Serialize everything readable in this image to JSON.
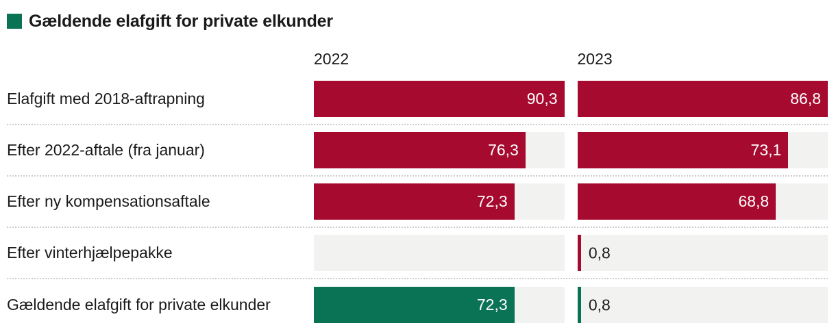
{
  "title": "Gældende elafgift for private elkunder",
  "columns": [
    "2022",
    "2023"
  ],
  "column_max": [
    90.3,
    86.8
  ],
  "colors": {
    "red": "#a60a2e",
    "green": "#0a7355",
    "track": "#f2f2f1",
    "separator": "#cbcbcb",
    "text_dark": "#1a1a1a",
    "text_light": "#ffffff"
  },
  "rows": [
    {
      "label": "Elafgift med 2018-aftrapning",
      "bar_color": "red",
      "cells": [
        {
          "value": 90.3,
          "label": "90,3"
        },
        {
          "value": 86.8,
          "label": "86,8"
        }
      ]
    },
    {
      "label": "Efter 2022-aftale (fra januar)",
      "bar_color": "red",
      "cells": [
        {
          "value": 76.3,
          "label": "76,3"
        },
        {
          "value": 73.1,
          "label": "73,1"
        }
      ]
    },
    {
      "label": "Efter ny kompensationsaftale",
      "bar_color": "red",
      "cells": [
        {
          "value": 72.3,
          "label": "72,3"
        },
        {
          "value": 68.8,
          "label": "68,8"
        }
      ]
    },
    {
      "label": "Efter vinterhjælpepakke",
      "bar_color": "red",
      "cells": [
        {
          "value": null,
          "label": null
        },
        {
          "value": 0.8,
          "label": "0,8"
        }
      ]
    },
    {
      "label": "Gældende elafgift for private elkunder",
      "bar_color": "green",
      "cells": [
        {
          "value": 72.3,
          "label": "72,3"
        },
        {
          "value": 0.8,
          "label": "0,8"
        }
      ]
    }
  ],
  "chart_data": {
    "type": "bar",
    "orientation": "horizontal",
    "title": "Gældende elafgift for private elkunder",
    "categories": [
      "Elafgift med 2018-aftrapning",
      "Efter 2022-aftale (fra januar)",
      "Efter ny kompensationsaftale",
      "Efter vinterhjælpepakke",
      "Gældende elafgift for private elkunder"
    ],
    "series": [
      {
        "name": "2022",
        "values": [
          90.3,
          76.3,
          72.3,
          null,
          72.3
        ]
      },
      {
        "name": "2023",
        "values": [
          86.8,
          73.1,
          68.8,
          0.8,
          0.8
        ]
      }
    ],
    "value_labels": [
      [
        "90,3",
        "86,8"
      ],
      [
        "76,3",
        "73,1"
      ],
      [
        "72,3",
        "68,8"
      ],
      [
        null,
        "0,8"
      ],
      [
        "72,3",
        "0,8"
      ]
    ],
    "bar_colors_by_row": [
      "red",
      "red",
      "red",
      "red",
      "green"
    ],
    "axis_ranges": {
      "2022": [
        0,
        90.3
      ],
      "2023": [
        0,
        86.8
      ]
    },
    "scale_note": "each year column scaled so its own maximum fills the track",
    "grid": "dotted horizontal separators between rows",
    "legend_position": "green swatch left of title",
    "decimal_format": "comma"
  }
}
